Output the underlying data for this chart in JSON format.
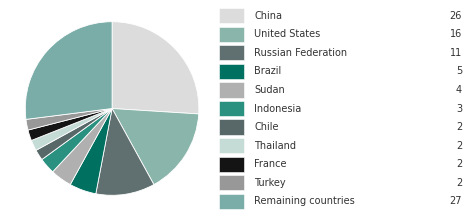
{
  "labels": [
    "China",
    "United States",
    "Russian Federation",
    "Brazil",
    "Sudan",
    "Indonesia",
    "Chile",
    "Thailand",
    "France",
    "Turkey",
    "Remaining countries"
  ],
  "values": [
    26,
    16,
    11,
    5,
    4,
    3,
    2,
    2,
    2,
    2,
    27
  ],
  "colors": [
    "#dcdcdc",
    "#8ab5aa",
    "#607070",
    "#007060",
    "#b0b0b0",
    "#2a9080",
    "#586868",
    "#c5dbd6",
    "#141414",
    "#989898",
    "#7aada8"
  ],
  "startangle": 90,
  "background_color": "#ffffff",
  "legend_font_size": 7.0,
  "value_color": "#333333"
}
